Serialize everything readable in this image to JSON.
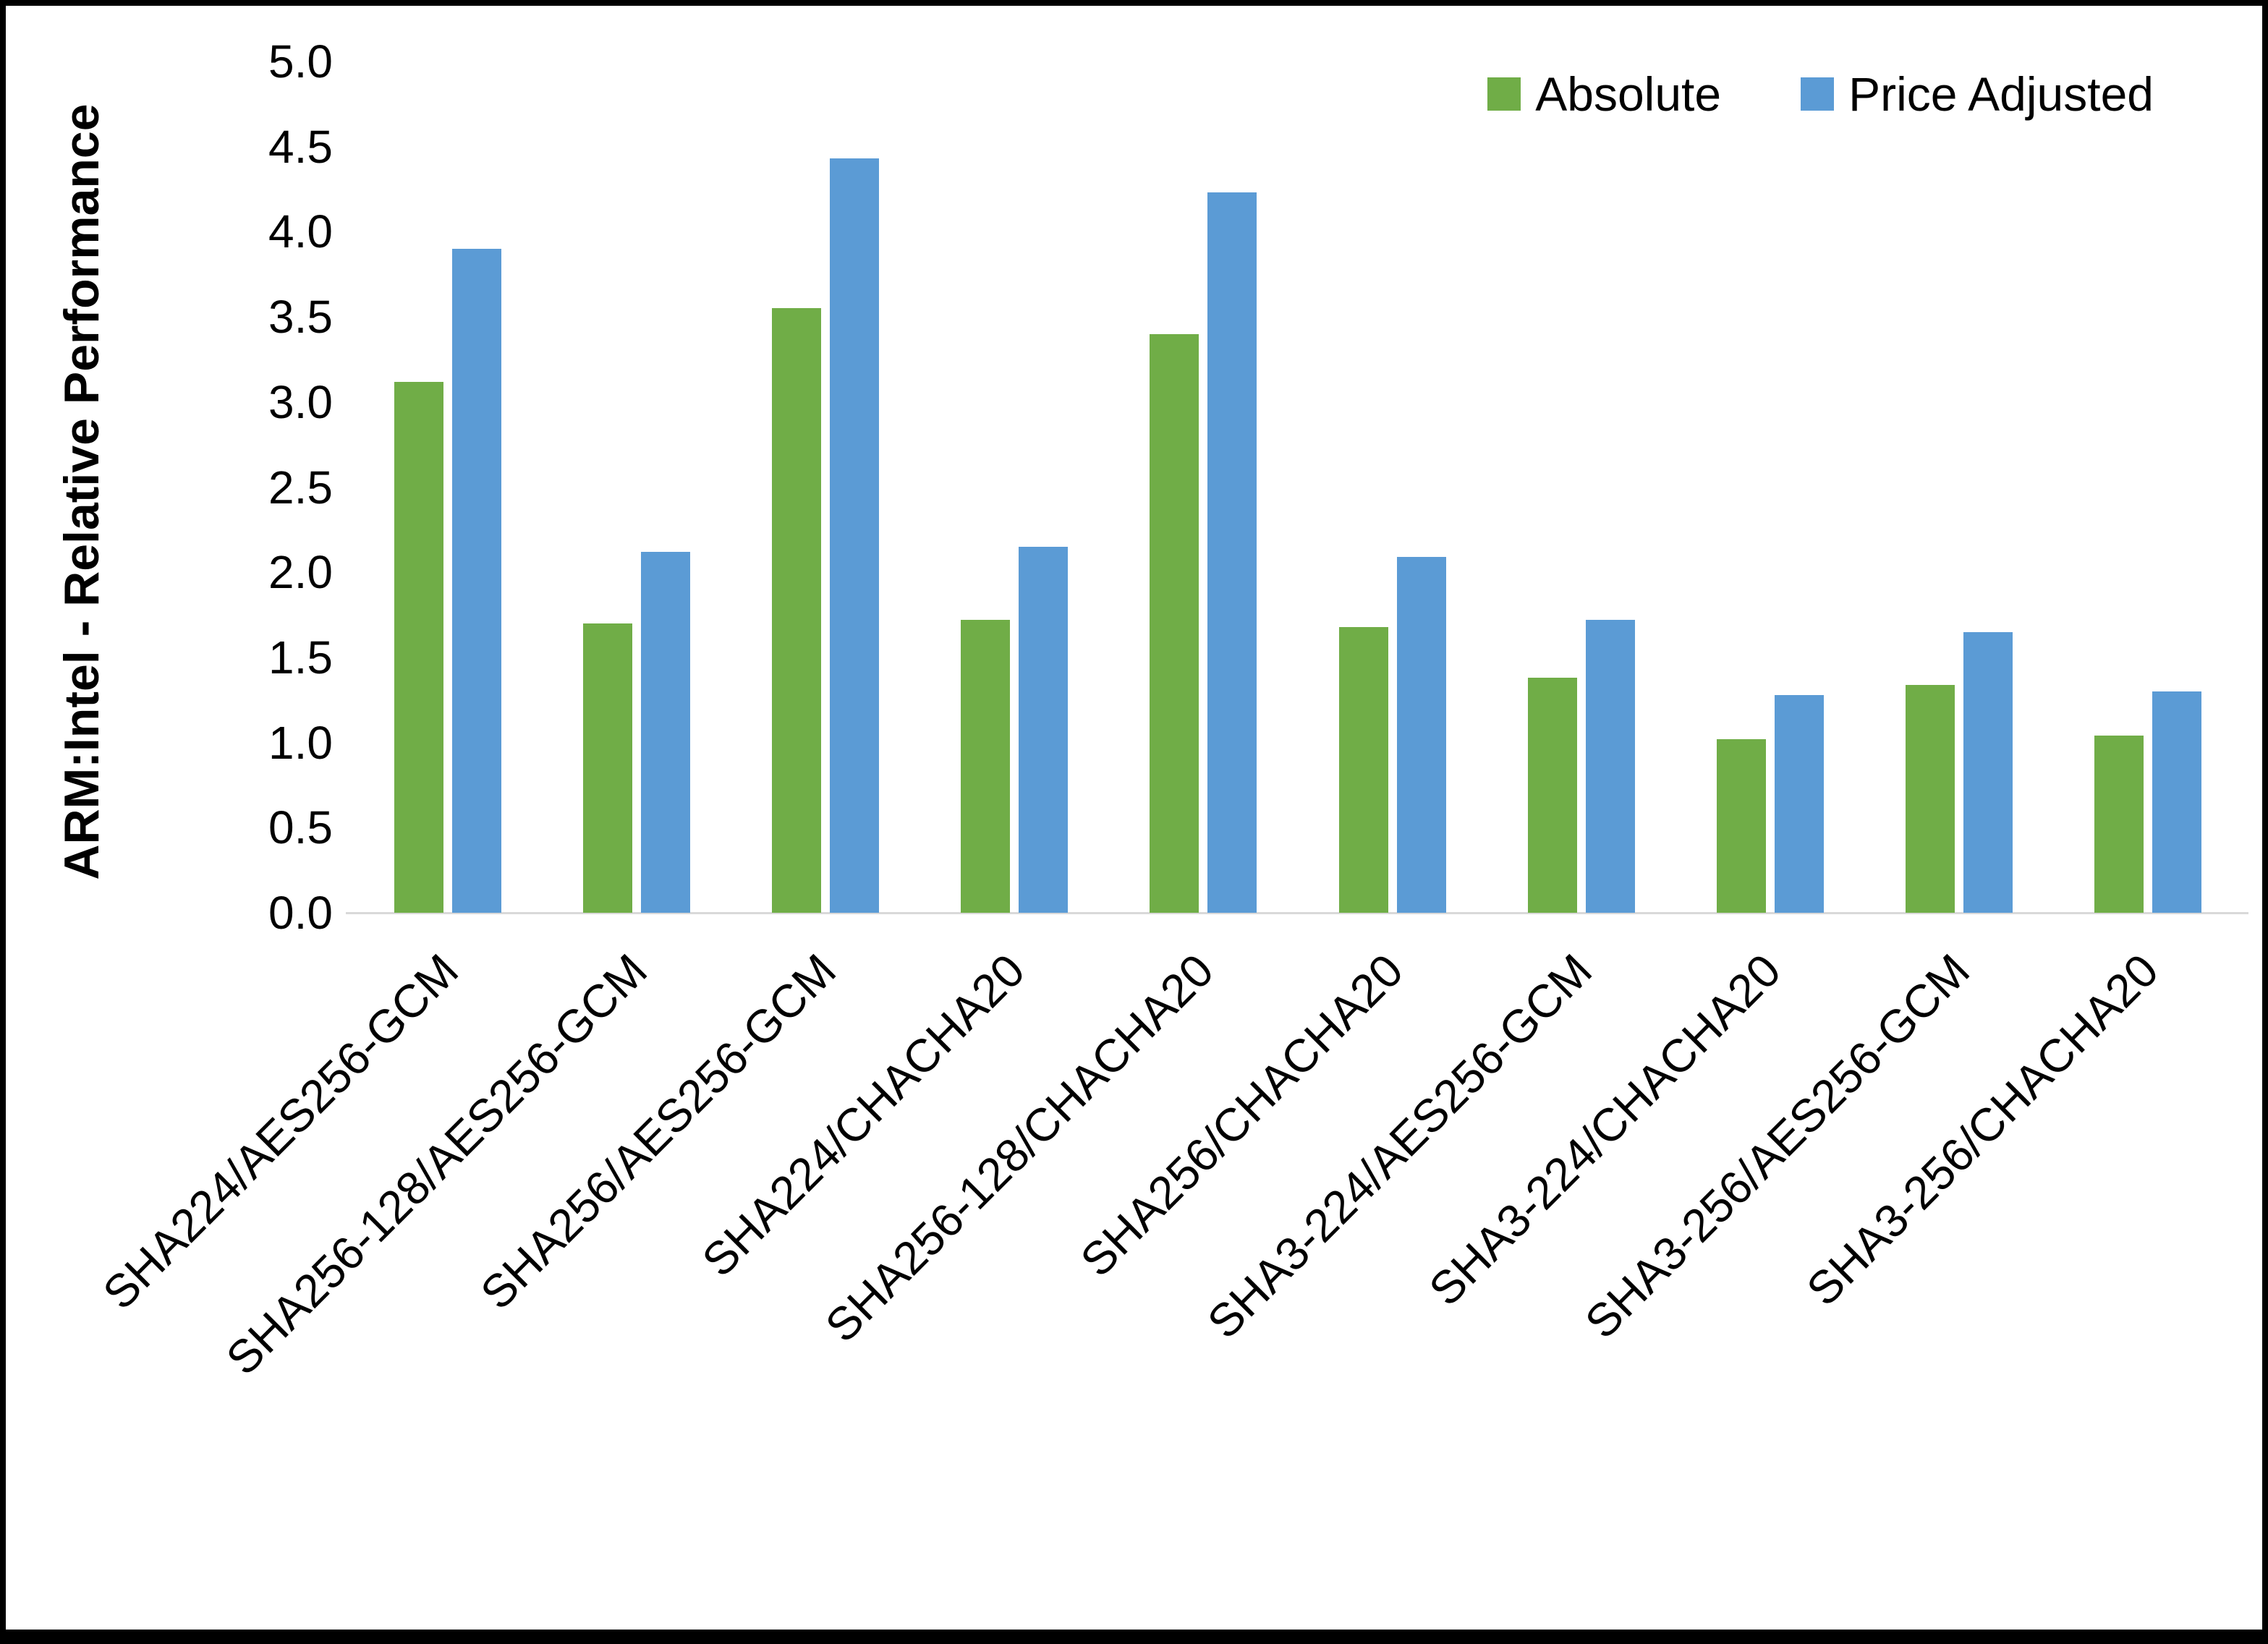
{
  "chart_data": {
    "type": "bar",
    "title": "",
    "xlabel": "",
    "ylabel": "ARM:Intel - Relative Performance",
    "ylim": [
      0,
      5
    ],
    "ytick_step": 0.5,
    "ytick_format_decimals": 1,
    "grid": false,
    "legend_position": "top-right",
    "categories": [
      "SHA224/AES256-GCM",
      "SHA256-128/AES256-GCM",
      "SHA256/AES256-GCM",
      "SHA224/CHACHA20",
      "SHA256-128/CHACHA20",
      "SHA256/CHACHA20",
      "SHA3-224/AES256-GCM",
      "SHA3-224/CHACHA20",
      "SHA3-256/AES256-GCM",
      "SHA3-256/CHACHA20"
    ],
    "series": [
      {
        "name": "Absolute",
        "color": "#70AD47",
        "values": [
          3.12,
          1.7,
          3.55,
          1.72,
          3.4,
          1.68,
          1.38,
          1.02,
          1.34,
          1.04
        ]
      },
      {
        "name": "Price Adjusted",
        "color": "#5B9BD5",
        "values": [
          3.9,
          2.12,
          4.43,
          2.15,
          4.23,
          2.09,
          1.72,
          1.28,
          1.65,
          1.3
        ]
      }
    ]
  }
}
